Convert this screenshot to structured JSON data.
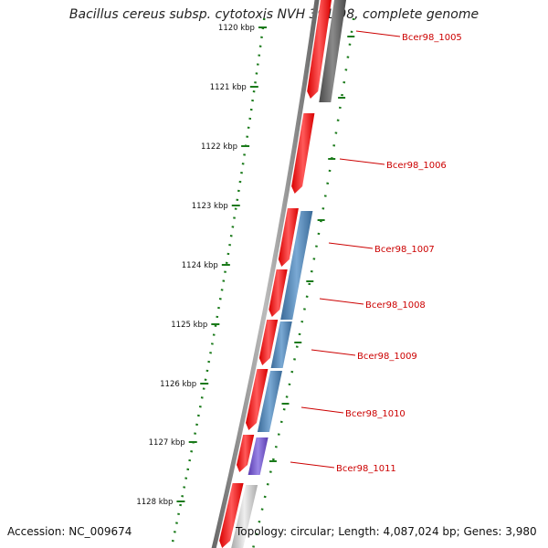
{
  "title": "Bacillus cereus subsp. cytotoxis NVH 391-98, complete genome",
  "footer": {
    "accession": "Accession: NC_009674",
    "summary": "Topology: circular; Length: 4,087,024 bp; Genes: 3,980"
  },
  "colors": {
    "backbone": "#888888",
    "scale": "#1a7a1a",
    "forward_gene": "#ee1111",
    "reverse_gene_blue": "#4a7fb0",
    "reverse_gene_purple": "#7a5ccc",
    "reverse_gene_dark": "#666666",
    "reverse_gene_light": "#cccccc",
    "label": "#cc0000"
  },
  "scale_labels": [
    "1120 kbp",
    "1121 kbp",
    "1122 kbp",
    "1123 kbp",
    "1124 kbp",
    "1125 kbp",
    "1126 kbp",
    "1127 kbp",
    "1128 kbp"
  ],
  "gene_labels": [
    "Bcer98_1005",
    "Bcer98_1006",
    "Bcer98_1007",
    "Bcer98_1008",
    "Bcer98_1009",
    "Bcer98_1010",
    "Bcer98_1011"
  ]
}
